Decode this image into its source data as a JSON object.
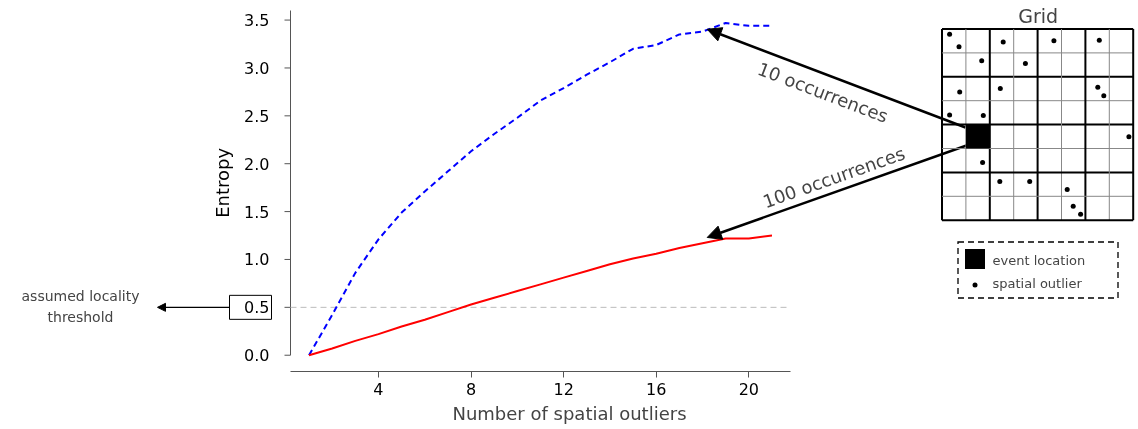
{
  "chart_data": {
    "type": "line",
    "xlabel": "Number of spatial outliers",
    "ylabel": "Entropy",
    "x": [
      1,
      2,
      3,
      4,
      5,
      6,
      7,
      8,
      9,
      10,
      11,
      12,
      13,
      14,
      15,
      16,
      17,
      18,
      19,
      20,
      21
    ],
    "xlim": [
      0.2,
      21.8
    ],
    "ylim": [
      -0.17,
      3.6
    ],
    "xticks": [
      4,
      8,
      12,
      16,
      20
    ],
    "yticks": [
      {
        "value": 0,
        "label": "0.0"
      },
      0.5,
      {
        "value": 1,
        "label": "1.0"
      },
      1.5,
      {
        "value": 2,
        "label": "2.0"
      },
      2.5,
      {
        "value": 3,
        "label": "3.0"
      },
      3.5
    ],
    "series": [
      {
        "color": "#0000ff",
        "line_style": "dashed",
        "values": [
          0,
          0.42,
          0.86,
          1.21,
          1.49,
          1.71,
          1.92,
          2.13,
          2.31,
          2.48,
          2.66,
          2.79,
          2.93,
          3.06,
          3.2,
          3.24,
          3.35,
          3.38,
          3.47,
          3.44,
          3.44
        ]
      },
      {
        "color": "#ff0000",
        "line_style": "solid",
        "values": [
          0,
          0.07,
          0.15,
          0.22,
          0.3,
          0.37,
          0.45,
          0.53,
          0.6,
          0.67,
          0.74,
          0.81,
          0.88,
          0.95,
          1.01,
          1.06,
          1.12,
          1.17,
          1.22,
          1.22,
          1.25
        ]
      }
    ],
    "ref_lines": [
      {
        "axis": "y",
        "value": 0.5,
        "color": "#bbbbbb",
        "line_style": "dashed"
      }
    ],
    "annotations": [
      "10 occurrences",
      "100 occurrences",
      "assumed locality threshold",
      "Grid",
      "event location",
      "spatial outlier"
    ],
    "grid": false
  }
}
